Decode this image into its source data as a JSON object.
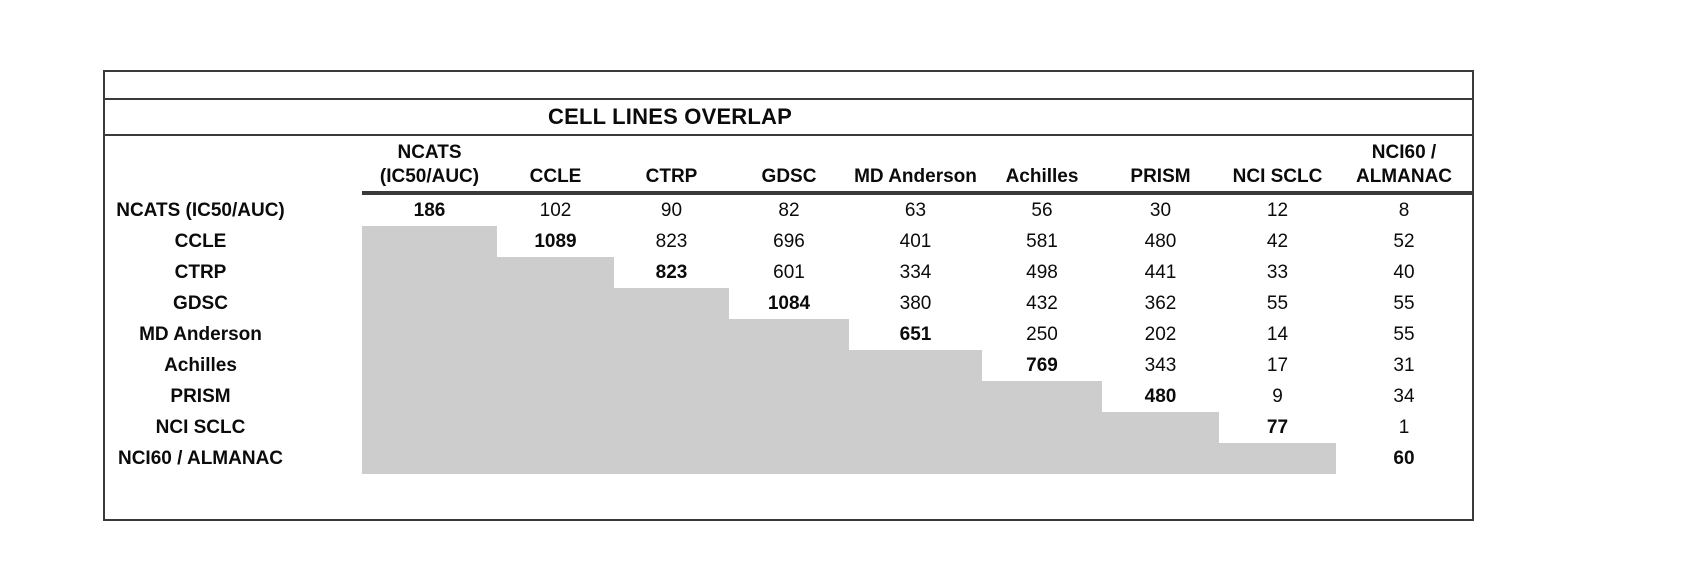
{
  "table": {
    "title": "CELL LINES OVERLAP",
    "column_headers": [
      {
        "line1": "NCATS",
        "line2": "(IC50/AUC)"
      },
      {
        "line1": "CCLE"
      },
      {
        "line1": "CTRP"
      },
      {
        "line1": "GDSC"
      },
      {
        "line1": "MD Anderson"
      },
      {
        "line1": "Achilles"
      },
      {
        "line1": "PRISM"
      },
      {
        "line1": "NCI SCLC"
      },
      {
        "line1": "NCI60 /",
        "line2": "ALMANAC"
      }
    ],
    "rows": [
      {
        "label": "NCATS (IC50/AUC)",
        "values": [
          "186",
          "102",
          "90",
          "82",
          "63",
          "56",
          "30",
          "12",
          "8"
        ]
      },
      {
        "label": "CCLE",
        "values": [
          null,
          "1089",
          "823",
          "696",
          "401",
          "581",
          "480",
          "42",
          "52"
        ]
      },
      {
        "label": "CTRP",
        "values": [
          null,
          null,
          "823",
          "601",
          "334",
          "498",
          "441",
          "33",
          "40"
        ]
      },
      {
        "label": "GDSC",
        "values": [
          null,
          null,
          null,
          "1084",
          "380",
          "432",
          "362",
          "55",
          "55"
        ]
      },
      {
        "label": "MD Anderson",
        "values": [
          null,
          null,
          null,
          null,
          "651",
          "250",
          "202",
          "14",
          "55"
        ]
      },
      {
        "label": "Achilles",
        "values": [
          null,
          null,
          null,
          null,
          null,
          "769",
          "343",
          "17",
          "31"
        ]
      },
      {
        "label": "PRISM",
        "values": [
          null,
          null,
          null,
          null,
          null,
          null,
          "480",
          "9",
          "34"
        ]
      },
      {
        "label": "NCI SCLC",
        "values": [
          null,
          null,
          null,
          null,
          null,
          null,
          null,
          "77",
          "1"
        ]
      },
      {
        "label": "NCI60 / ALMANAC",
        "values": [
          null,
          null,
          null,
          null,
          null,
          null,
          null,
          null,
          "60"
        ]
      }
    ],
    "colors": {
      "shade": "#cdcdcd",
      "border": "#3a3a3a",
      "text": "#0b0b0b",
      "background": "#ffffff"
    }
  }
}
